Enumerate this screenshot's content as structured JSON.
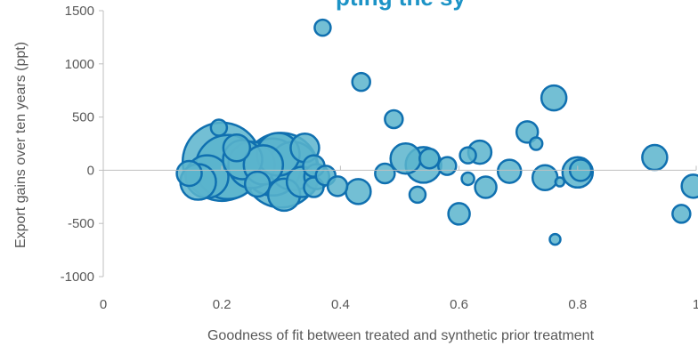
{
  "chart_data": {
    "type": "scatter",
    "title": "...pting the synthetic control result of exports (partially visible)",
    "title_visible_text": "pting the sy",
    "xlabel": "Goodness of fit between treated and synthetic prior treatment",
    "ylabel": "Export gains over ten years (ppt)",
    "xlim": [
      0,
      1
    ],
    "ylim": [
      -1000,
      1500
    ],
    "x_ticks": [
      "0",
      "0.2",
      "0.4",
      "0.6",
      "0.8",
      "1"
    ],
    "y_ticks": [
      "1500",
      "1000",
      "500",
      "0",
      "-500",
      "-1000"
    ],
    "grid": false,
    "legend": "none",
    "marker_style": "bubble",
    "colors": {
      "fill": "#5BB4CC",
      "stroke": "#1070B0",
      "title": "#1C93C6",
      "axis": "#BFBFBF",
      "text": "#595959"
    },
    "series": [
      {
        "points": [
          {
            "x": 0.145,
            "y": -30,
            "size": 14
          },
          {
            "x": 0.16,
            "y": -110,
            "size": 20
          },
          {
            "x": 0.175,
            "y": -60,
            "size": 24
          },
          {
            "x": 0.195,
            "y": 400,
            "size": 9
          },
          {
            "x": 0.2,
            "y": 80,
            "size": 44
          },
          {
            "x": 0.21,
            "y": 30,
            "size": 36
          },
          {
            "x": 0.225,
            "y": 210,
            "size": 15
          },
          {
            "x": 0.235,
            "y": 100,
            "size": 22
          },
          {
            "x": 0.25,
            "y": 50,
            "size": 26
          },
          {
            "x": 0.26,
            "y": -130,
            "size": 14
          },
          {
            "x": 0.27,
            "y": 50,
            "size": 22
          },
          {
            "x": 0.285,
            "y": 30,
            "size": 32
          },
          {
            "x": 0.295,
            "y": 150,
            "size": 24
          },
          {
            "x": 0.3,
            "y": 0,
            "size": 42
          },
          {
            "x": 0.305,
            "y": -230,
            "size": 18
          },
          {
            "x": 0.32,
            "y": 40,
            "size": 27
          },
          {
            "x": 0.335,
            "y": -110,
            "size": 17
          },
          {
            "x": 0.34,
            "y": 210,
            "size": 16
          },
          {
            "x": 0.355,
            "y": 40,
            "size": 12
          },
          {
            "x": 0.355,
            "y": -160,
            "size": 11
          },
          {
            "x": 0.36,
            "y": -60,
            "size": 14
          },
          {
            "x": 0.37,
            "y": 1340,
            "size": 9
          },
          {
            "x": 0.375,
            "y": -50,
            "size": 11
          },
          {
            "x": 0.395,
            "y": -150,
            "size": 11
          },
          {
            "x": 0.43,
            "y": -200,
            "size": 14
          },
          {
            "x": 0.435,
            "y": 830,
            "size": 10
          },
          {
            "x": 0.475,
            "y": -30,
            "size": 11
          },
          {
            "x": 0.49,
            "y": 480,
            "size": 10
          },
          {
            "x": 0.51,
            "y": 110,
            "size": 17
          },
          {
            "x": 0.53,
            "y": -230,
            "size": 9
          },
          {
            "x": 0.54,
            "y": 50,
            "size": 20
          },
          {
            "x": 0.55,
            "y": 110,
            "size": 11
          },
          {
            "x": 0.58,
            "y": 40,
            "size": 10
          },
          {
            "x": 0.6,
            "y": -410,
            "size": 12
          },
          {
            "x": 0.615,
            "y": -80,
            "size": 7
          },
          {
            "x": 0.615,
            "y": 140,
            "size": 9
          },
          {
            "x": 0.635,
            "y": 170,
            "size": 13
          },
          {
            "x": 0.645,
            "y": -160,
            "size": 12
          },
          {
            "x": 0.685,
            "y": -10,
            "size": 13
          },
          {
            "x": 0.715,
            "y": 360,
            "size": 12
          },
          {
            "x": 0.73,
            "y": 250,
            "size": 7
          },
          {
            "x": 0.745,
            "y": -70,
            "size": 14
          },
          {
            "x": 0.76,
            "y": 680,
            "size": 14
          },
          {
            "x": 0.762,
            "y": -650,
            "size": 6
          },
          {
            "x": 0.77,
            "y": -110,
            "size": 5
          },
          {
            "x": 0.8,
            "y": -20,
            "size": 17
          },
          {
            "x": 0.805,
            "y": 0,
            "size": 12
          },
          {
            "x": 0.93,
            "y": 120,
            "size": 14
          },
          {
            "x": 0.975,
            "y": -410,
            "size": 10
          },
          {
            "x": 0.995,
            "y": -150,
            "size": 13
          }
        ]
      }
    ]
  }
}
